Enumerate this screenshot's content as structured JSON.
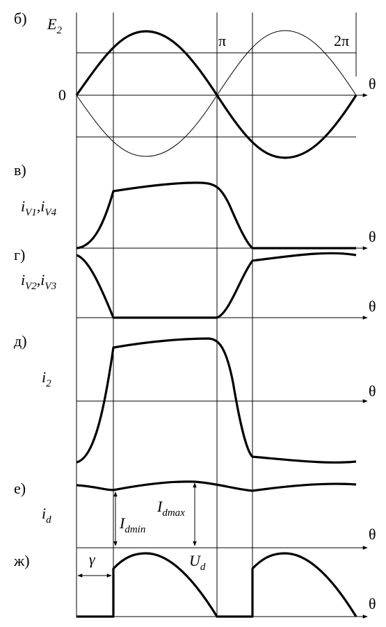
{
  "panels": [
    {
      "label": "б)",
      "signal": [
        {
          "base": "E",
          "sub": "2"
        }
      ],
      "origin": "0",
      "marks": [
        "π",
        "2π"
      ],
      "axis": "θ"
    },
    {
      "label": "в)",
      "signal": [
        {
          "base": "i",
          "sub": "V1"
        },
        {
          "base": ",i",
          "sub": "V4"
        }
      ],
      "axis": "θ"
    },
    {
      "label": "г)",
      "signal": [
        {
          "base": "i",
          "sub": "V2"
        },
        {
          "base": ",i",
          "sub": "V3"
        }
      ],
      "axis": "θ"
    },
    {
      "label": "д)",
      "signal": [
        {
          "base": "i",
          "sub": "2"
        }
      ],
      "axis": "θ"
    },
    {
      "label": "е)",
      "signal": [
        {
          "base": "i",
          "sub": "d"
        }
      ],
      "axis": "θ",
      "annotations": [
        {
          "base": "I",
          "sub": "dmin"
        },
        {
          "base": "I",
          "sub": "dmax"
        }
      ]
    },
    {
      "label": "ж)",
      "axis": "θ",
      "annotations": [
        {
          "base": "γ"
        },
        {
          "base": "U",
          "sub": "d"
        }
      ]
    }
  ]
}
